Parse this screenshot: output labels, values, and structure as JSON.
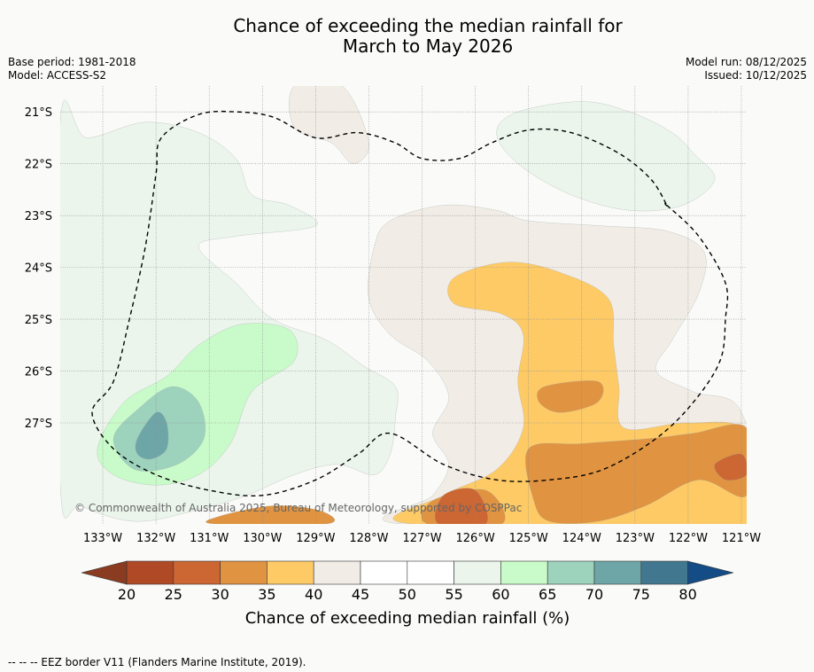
{
  "title_line1": "Chance of exceeding the median rainfall for",
  "title_line2": "March to May 2026",
  "base_period": "Base period: 1981-2018",
  "model": "Model: ACCESS-S2",
  "model_run": "Model run: 08/12/2025",
  "issued": "Issued: 10/12/2025",
  "copyright": "© Commonwealth of Australia 2025, Bureau of Meteorology, supported by COSPPac",
  "footnote": "--  --  -- EEZ border V11 (Flanders Marine Institute, 2019).",
  "map": {
    "lon_range": [
      -133.8,
      -120.9
    ],
    "lat_range": [
      -28.95,
      -20.5
    ],
    "lat_ticks": [
      {
        "value": -21,
        "label": "21°S"
      },
      {
        "value": -22,
        "label": "22°S"
      },
      {
        "value": -23,
        "label": "23°S"
      },
      {
        "value": -24,
        "label": "24°S"
      },
      {
        "value": -25,
        "label": "25°S"
      },
      {
        "value": -26,
        "label": "26°S"
      },
      {
        "value": -27,
        "label": "27°S"
      }
    ],
    "lon_ticks": [
      {
        "value": -133,
        "label": "133°W"
      },
      {
        "value": -132,
        "label": "132°W"
      },
      {
        "value": -131,
        "label": "131°W"
      },
      {
        "value": -130,
        "label": "130°W"
      },
      {
        "value": -129,
        "label": "129°W"
      },
      {
        "value": -128,
        "label": "128°W"
      },
      {
        "value": -127,
        "label": "127°W"
      },
      {
        "value": -126,
        "label": "126°W"
      },
      {
        "value": -125,
        "label": "125°W"
      },
      {
        "value": -124,
        "label": "124°W"
      },
      {
        "value": -123,
        "label": "123°W"
      },
      {
        "value": -122,
        "label": "122°W"
      },
      {
        "value": -121,
        "label": "121°W"
      }
    ],
    "bins": [
      {
        "range": "<20",
        "color": "#8a3c22"
      },
      {
        "range": "20-25",
        "color": "#b04a26"
      },
      {
        "range": "25-30",
        "color": "#cc6633"
      },
      {
        "range": "30-35",
        "color": "#e09340"
      },
      {
        "range": "35-40",
        "color": "#fdca66"
      },
      {
        "range": "40-45",
        "color": "#f1ece6"
      },
      {
        "range": "45-50",
        "color": "#ffffff"
      },
      {
        "range": "50-55",
        "color": "#ffffff"
      },
      {
        "range": "55-60",
        "color": "#ebf5ec"
      },
      {
        "range": "60-65",
        "color": "#c9fbca"
      },
      {
        "range": "65-70",
        "color": "#9dd2bd"
      },
      {
        "range": "70-75",
        "color": "#6ea6a8"
      },
      {
        "range": "75-80",
        "color": "#41788f"
      },
      {
        "range": ">80",
        "color": "#144c86"
      }
    ],
    "zones": [
      {
        "name": "wet-west-outer",
        "percent": 57,
        "points": [
          [
            -133.8,
            -21.2
          ],
          [
            -133.3,
            -21.5
          ],
          [
            -132.2,
            -21.2
          ],
          [
            -131.2,
            -21.4
          ],
          [
            -130.5,
            -21.9
          ],
          [
            -130.2,
            -22.6
          ],
          [
            -129.5,
            -22.8
          ],
          [
            -129,
            -23.2
          ],
          [
            -130.5,
            -23.4
          ],
          [
            -131.2,
            -23.6
          ],
          [
            -130.5,
            -24.3
          ],
          [
            -129.8,
            -25
          ],
          [
            -128.8,
            -25.4
          ],
          [
            -128.1,
            -25.9
          ],
          [
            -127.5,
            -26.3
          ],
          [
            -127.5,
            -26.9
          ],
          [
            -127.6,
            -27.6
          ],
          [
            -127.9,
            -28
          ],
          [
            -128.6,
            -27.8
          ],
          [
            -129.4,
            -28
          ],
          [
            -130.3,
            -28.4
          ],
          [
            -131.3,
            -28.7
          ],
          [
            -132.4,
            -28.9
          ],
          [
            -133.4,
            -28.6
          ],
          [
            -133.8,
            -28.2
          ]
        ]
      },
      {
        "name": "wet-north-east",
        "percent": 57,
        "points": [
          [
            -125.2,
            -21
          ],
          [
            -124,
            -20.8
          ],
          [
            -123.1,
            -21
          ],
          [
            -122.3,
            -21.4
          ],
          [
            -121.9,
            -21.8
          ],
          [
            -121.5,
            -22.3
          ],
          [
            -122.1,
            -22.8
          ],
          [
            -123.1,
            -22.9
          ],
          [
            -124.2,
            -22.6
          ],
          [
            -125.2,
            -22
          ],
          [
            -125.6,
            -21.4
          ]
        ]
      },
      {
        "name": "wet-west-inner",
        "percent": 62,
        "points": [
          [
            -133.1,
            -27.5
          ],
          [
            -132.6,
            -26.6
          ],
          [
            -131.8,
            -26.1
          ],
          [
            -131.2,
            -25.5
          ],
          [
            -130.4,
            -25.1
          ],
          [
            -129.5,
            -25.2
          ],
          [
            -129.4,
            -25.8
          ],
          [
            -130.2,
            -26.4
          ],
          [
            -130.6,
            -27.4
          ],
          [
            -131.2,
            -28
          ],
          [
            -132,
            -28.2
          ],
          [
            -132.8,
            -28
          ]
        ]
      },
      {
        "name": "wet-west-core",
        "percent": 67,
        "points": [
          [
            -132.8,
            -27.3
          ],
          [
            -132.3,
            -26.7
          ],
          [
            -131.7,
            -26.3
          ],
          [
            -131.2,
            -26.6
          ],
          [
            -131.1,
            -27.3
          ],
          [
            -131.6,
            -27.8
          ],
          [
            -132.4,
            -27.9
          ]
        ]
      },
      {
        "name": "wet-west-peak",
        "percent": 72,
        "points": [
          [
            -132.35,
            -27.3
          ],
          [
            -132.0,
            -26.8
          ],
          [
            -131.8,
            -27.0
          ],
          [
            -131.8,
            -27.5
          ],
          [
            -132.1,
            -27.7
          ],
          [
            -132.35,
            -27.6
          ]
        ]
      },
      {
        "name": "dry-north",
        "percent": 42,
        "points": [
          [
            -129.4,
            -20.5
          ],
          [
            -128.5,
            -20.5
          ],
          [
            -128.0,
            -21.6
          ],
          [
            -128.3,
            -22
          ],
          [
            -128.7,
            -21.6
          ],
          [
            -129.4,
            -21.3
          ]
        ]
      },
      {
        "name": "dry-central",
        "percent": 42,
        "points": [
          [
            -127.6,
            -23.1
          ],
          [
            -126.6,
            -22.8
          ],
          [
            -125.6,
            -22.9
          ],
          [
            -125,
            -23.1
          ],
          [
            -123.6,
            -23.2
          ],
          [
            -122.4,
            -23.3
          ],
          [
            -121.7,
            -23.7
          ],
          [
            -121.8,
            -24.5
          ],
          [
            -122.3,
            -25.4
          ],
          [
            -122.6,
            -26
          ],
          [
            -121.9,
            -26.4
          ],
          [
            -121,
            -26.8
          ],
          [
            -120.9,
            -28.95
          ],
          [
            -127.4,
            -28.95
          ],
          [
            -126.8,
            -28.4
          ],
          [
            -126.5,
            -27.8
          ],
          [
            -126.8,
            -27.2
          ],
          [
            -126.5,
            -26.5
          ],
          [
            -126.9,
            -25.8
          ],
          [
            -127.6,
            -25.3
          ],
          [
            -128,
            -24.6
          ],
          [
            -127.9,
            -23.6
          ]
        ]
      },
      {
        "name": "dry-yellow",
        "percent": 37,
        "points": [
          [
            -126.4,
            -24.2
          ],
          [
            -125.4,
            -23.9
          ],
          [
            -124.4,
            -24.1
          ],
          [
            -123.5,
            -24.6
          ],
          [
            -123.4,
            -25.5
          ],
          [
            -123.3,
            -26.3
          ],
          [
            -123.2,
            -27.1
          ],
          [
            -122.0,
            -27.0
          ],
          [
            -120.9,
            -27.2
          ],
          [
            -120.9,
            -28.95
          ],
          [
            -127.2,
            -28.95
          ],
          [
            -126.6,
            -28.4
          ],
          [
            -125.6,
            -27.9
          ],
          [
            -125.1,
            -27.1
          ],
          [
            -125.2,
            -26.2
          ],
          [
            -125.1,
            -25.3
          ],
          [
            -125.5,
            -24.9
          ],
          [
            -126.4,
            -24.7
          ]
        ]
      },
      {
        "name": "dry-mid-orange",
        "percent": 32,
        "points": [
          [
            -124.7,
            -26.3
          ],
          [
            -123.7,
            -26.2
          ],
          [
            -123.7,
            -26.6
          ],
          [
            -124.4,
            -26.8
          ],
          [
            -124.8,
            -26.6
          ]
        ]
      },
      {
        "name": "dry-east-orange",
        "percent": 32,
        "points": [
          [
            -125.0,
            -27.5
          ],
          [
            -124.0,
            -27.4
          ],
          [
            -122.7,
            -27.3
          ],
          [
            -121.9,
            -27.2
          ],
          [
            -120.9,
            -27.1
          ],
          [
            -120.9,
            -28.4
          ],
          [
            -121.8,
            -28.1
          ],
          [
            -122.8,
            -28.6
          ],
          [
            -123.7,
            -28.9
          ],
          [
            -124.6,
            -28.9
          ],
          [
            -124.9,
            -28.5
          ]
        ]
      },
      {
        "name": "dry-south-orange",
        "percent": 32,
        "points": [
          [
            -130.8,
            -28.8
          ],
          [
            -129.8,
            -28.6
          ],
          [
            -128.9,
            -28.7
          ],
          [
            -128.8,
            -28.95
          ],
          [
            -130.9,
            -28.95
          ]
        ]
      },
      {
        "name": "dry-south-orange-2",
        "percent": 32,
        "points": [
          [
            -126.8,
            -28.5
          ],
          [
            -125.8,
            -28.3
          ],
          [
            -125.5,
            -28.95
          ],
          [
            -126.9,
            -28.95
          ]
        ]
      },
      {
        "name": "dry-deep-east",
        "percent": 27,
        "points": [
          [
            -121.5,
            -27.8
          ],
          [
            -121,
            -27.6
          ],
          [
            -120.9,
            -28
          ],
          [
            -121.3,
            -28.1
          ]
        ]
      },
      {
        "name": "dry-deep-south",
        "percent": 27,
        "points": [
          [
            -126.6,
            -28.4
          ],
          [
            -126.0,
            -28.3
          ],
          [
            -125.8,
            -28.95
          ],
          [
            -126.7,
            -28.95
          ]
        ]
      }
    ],
    "eez_border": [
      [
        -122.4,
        -22.8
      ],
      [
        -121.8,
        -23.4
      ],
      [
        -121.3,
        -24.3
      ],
      [
        -121.3,
        -25
      ],
      [
        -121.4,
        -25.8
      ],
      [
        -121.9,
        -26.6
      ],
      [
        -122.6,
        -27.3
      ],
      [
        -123.6,
        -27.9
      ],
      [
        -124.6,
        -28.1
      ],
      [
        -125.6,
        -28.1
      ],
      [
        -126.6,
        -27.8
      ],
      [
        -127.6,
        -27.2
      ],
      [
        -128.2,
        -27.6
      ],
      [
        -129,
        -28.1
      ],
      [
        -130,
        -28.4
      ],
      [
        -131,
        -28.3
      ],
      [
        -132,
        -28
      ],
      [
        -132.8,
        -27.5
      ],
      [
        -133.2,
        -26.8
      ],
      [
        -132.8,
        -26.2
      ],
      [
        -132.5,
        -25
      ],
      [
        -132.2,
        -23.6
      ],
      [
        -132,
        -22.2
      ],
      [
        -131.9,
        -21.5
      ],
      [
        -131.2,
        -21.05
      ],
      [
        -130.5,
        -21
      ],
      [
        -129.8,
        -21.1
      ],
      [
        -129,
        -21.5
      ],
      [
        -128.2,
        -21.4
      ],
      [
        -127.5,
        -21.6
      ],
      [
        -127,
        -21.9
      ],
      [
        -126.3,
        -21.9
      ],
      [
        -125.7,
        -21.6
      ],
      [
        -125,
        -21.35
      ],
      [
        -124.2,
        -21.4
      ],
      [
        -123.3,
        -21.8
      ],
      [
        -122.7,
        -22.3
      ],
      [
        -122.4,
        -22.8
      ]
    ]
  },
  "colorbar": {
    "ticks": [
      "20",
      "25",
      "30",
      "35",
      "40",
      "45",
      "50",
      "55",
      "60",
      "65",
      "70",
      "75",
      "80"
    ],
    "label": "Chance of exceeding median rainfall (%)"
  }
}
